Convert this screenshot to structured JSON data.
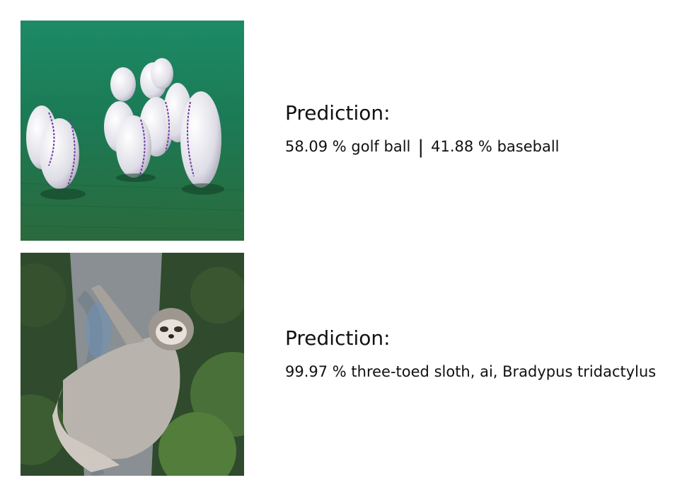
{
  "predictions": [
    {
      "heading": "Prediction:",
      "results": [
        {
          "text": "58.09 % golf ball"
        },
        {
          "text": "41.88 % baseball"
        }
      ],
      "separator": "|"
    },
    {
      "heading": "Prediction:",
      "results": [
        {
          "text": "99.97 % three-toed sloth, ai, Bradypus tridactylus"
        }
      ]
    }
  ],
  "colors": {
    "grass": "#1e7a52",
    "ball": "#e9e9ec",
    "stitch": "#6d3aa3",
    "foliage": "#2f4a2c",
    "bark": "#8a8f93",
    "sloth_fur": "#b9b3ad"
  }
}
